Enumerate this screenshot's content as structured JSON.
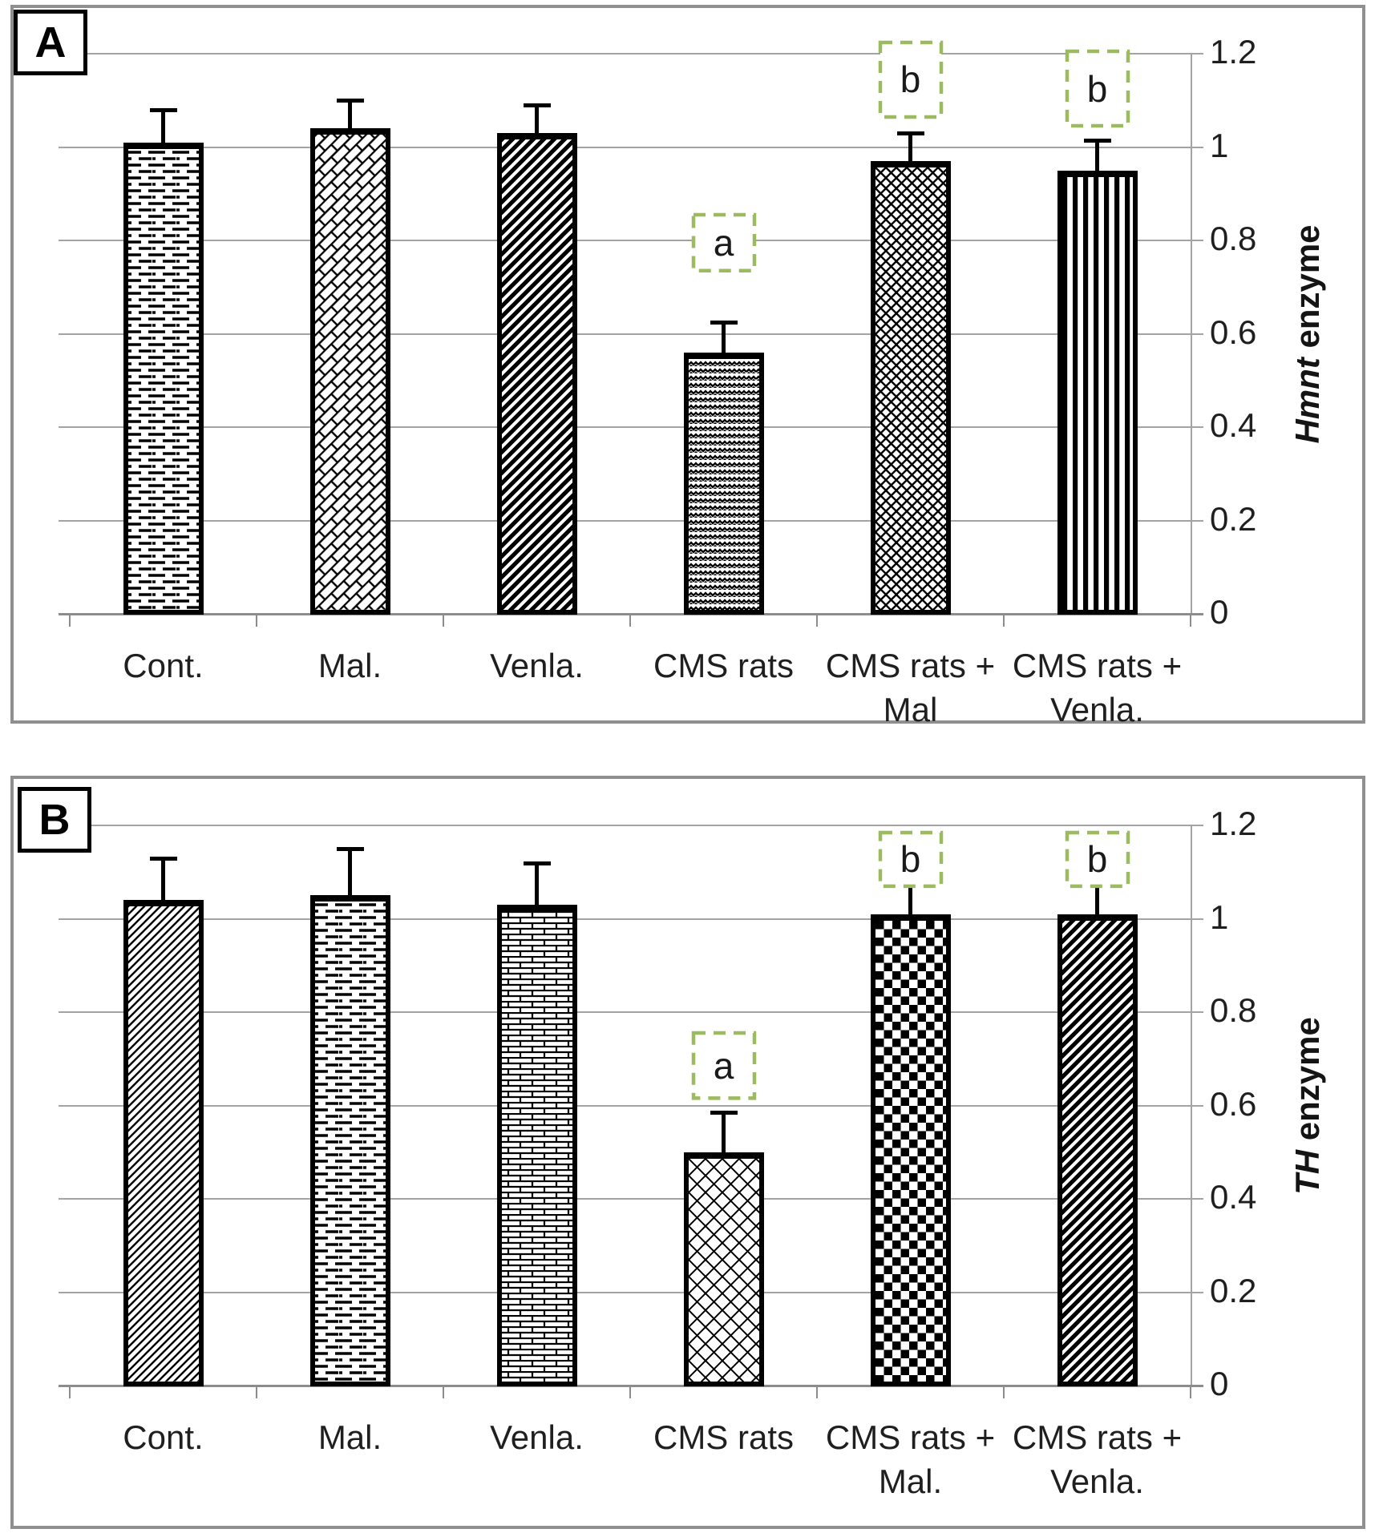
{
  "colors": {
    "annotation_box_green": "#9cba5f",
    "gridline": "#a3a3a3",
    "axis_line": "#8c8c8c",
    "panel_border": "#8f8f8f",
    "bar_stroke": "#000000",
    "text": "#1f1f1f"
  },
  "chart_data": [
    {
      "type": "bar",
      "panel_label": "A",
      "title": "",
      "xlabel": "",
      "ylabel": "Hmnt enzyme",
      "ylabel_italic_part": "Hmnt",
      "ylabel_regular_part": "enzyme",
      "ylim": [
        0,
        1.2
      ],
      "grid": true,
      "legend": "none",
      "ytick_values": [
        1.2,
        1,
        0.8,
        0.6,
        0.4,
        0.2,
        0
      ],
      "ytick_labels": [
        "1.2",
        "1",
        "0.8",
        "0.6",
        "0.4",
        "0.2",
        "0"
      ],
      "categories": [
        "Cont.",
        "Mal.",
        "Venla.",
        "CMS rats",
        "CMS rats +\nMal",
        "CMS rats +\nVenla."
      ],
      "values": [
        1.01,
        1.04,
        1.03,
        0.56,
        0.97,
        0.95
      ],
      "errors": [
        0.07,
        0.06,
        0.06,
        0.065,
        0.06,
        0.065
      ],
      "bar_patterns": [
        "horizontal-dashes",
        "diagonal-brick-weave",
        "thick-diagonal-stripes",
        "herringbone-zigzag",
        "diamond-crosshatch-fine",
        "vertical-stripes"
      ],
      "annotations": [
        {
          "bar_index": 3,
          "letter": "a",
          "box_bottom": 0.73,
          "box_top": 0.86,
          "stem_into_box": false
        },
        {
          "bar_index": 4,
          "letter": "b",
          "box_bottom": 1.06,
          "box_top": 1.23,
          "stem_into_box": false
        },
        {
          "bar_index": 5,
          "letter": "b",
          "box_bottom": 1.04,
          "box_top": 1.21,
          "stem_into_box": false
        }
      ]
    },
    {
      "type": "bar",
      "panel_label": "B",
      "title": "",
      "xlabel": "",
      "ylabel": "TH enzyme",
      "ylabel_italic_part": "TH",
      "ylabel_regular_part": "enzyme",
      "ylim": [
        0,
        1.2
      ],
      "grid": true,
      "legend": "none",
      "ytick_values": [
        1.2,
        1,
        0.8,
        0.6,
        0.4,
        0.2,
        0
      ],
      "ytick_labels": [
        "1.2",
        "1",
        "0.8",
        "0.6",
        "0.4",
        "0.2",
        "0"
      ],
      "categories": [
        "Cont.",
        "Mal.",
        "Venla.",
        "CMS rats",
        "CMS rats +\nMal.",
        "CMS rats +\nVenla."
      ],
      "values": [
        1.04,
        1.05,
        1.03,
        0.5,
        1.01,
        1.01
      ],
      "errors": [
        0.09,
        0.1,
        0.09,
        0.085,
        0.08,
        0.08
      ],
      "bar_patterns": [
        "thin-diagonal-stripes",
        "horizontal-dashes",
        "brick-wall",
        "diamond-lattice-open",
        "checkerboard",
        "thick-diagonal-stripes"
      ],
      "annotations": [
        {
          "bar_index": 3,
          "letter": "a",
          "box_bottom": 0.61,
          "box_top": 0.76,
          "stem_into_box": false
        },
        {
          "bar_index": 4,
          "letter": "b",
          "box_bottom": 1.065,
          "box_top": 1.19,
          "stem_into_box": true
        },
        {
          "bar_index": 5,
          "letter": "b",
          "box_bottom": 1.065,
          "box_top": 1.19,
          "stem_into_box": true
        }
      ]
    }
  ]
}
